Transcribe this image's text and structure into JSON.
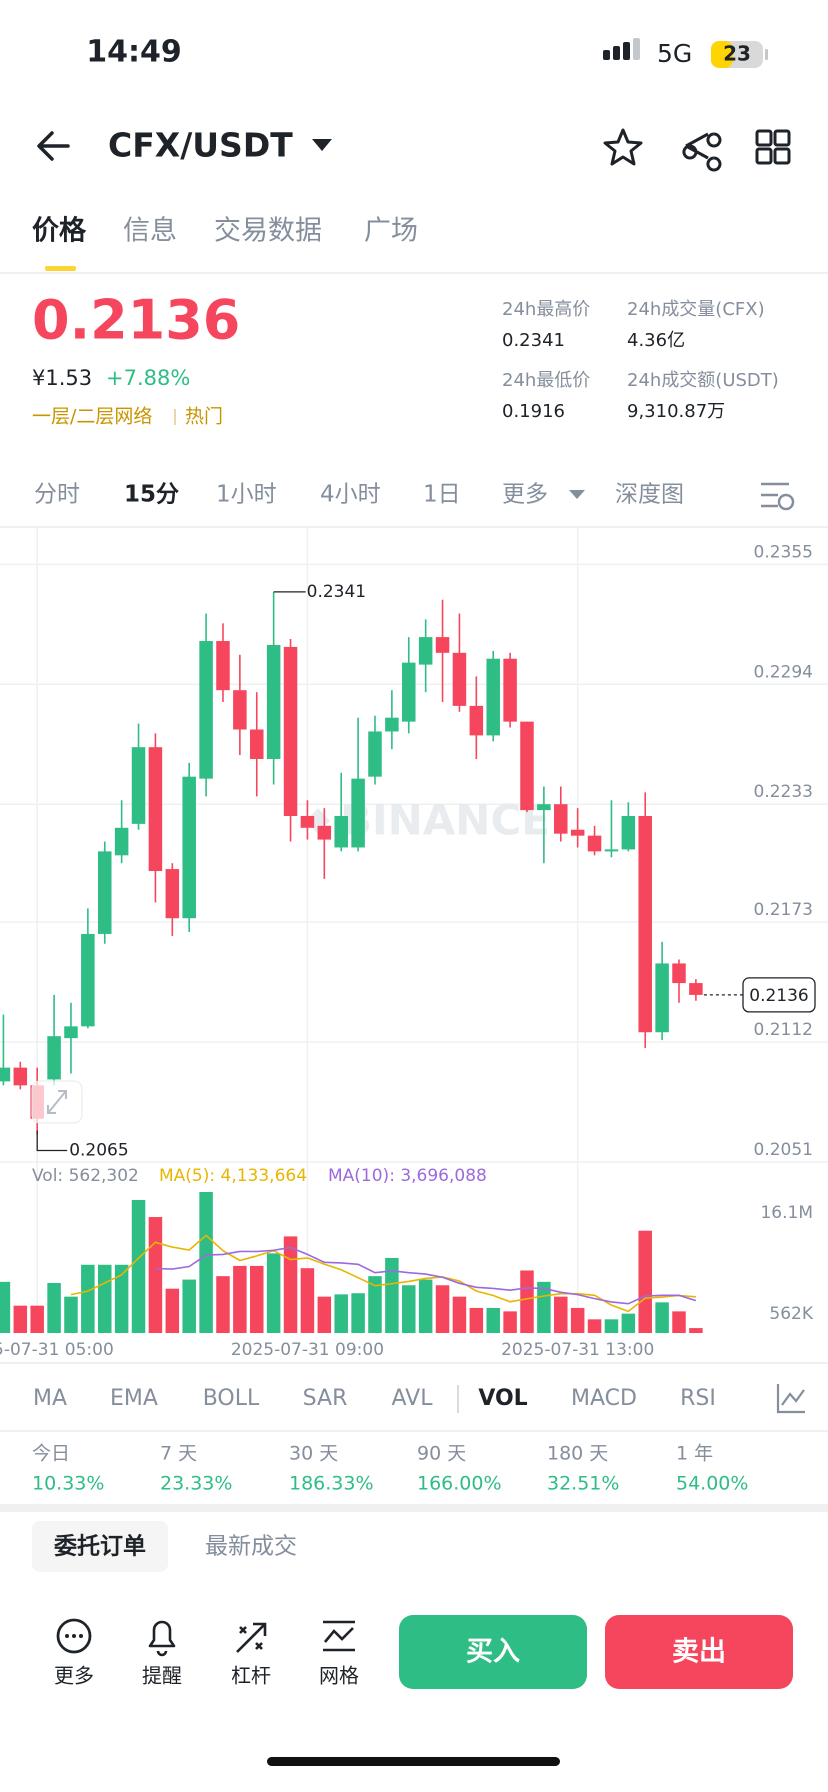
{
  "status_bar": {
    "time": "14:49",
    "network": "5G",
    "battery": "23"
  },
  "header": {
    "pair": "CFX/USDT"
  },
  "tabs": {
    "items": [
      "价格",
      "信息",
      "交易数据",
      "广场"
    ],
    "active": 0
  },
  "ticker": {
    "price": "0.2136",
    "cny": "¥1.53",
    "change": "+7.88%",
    "tags": [
      "一层/二层网络",
      "热门"
    ]
  },
  "stats": [
    {
      "label": "24h最高价",
      "value": "0.2341"
    },
    {
      "label": "24h成交量(CFX)",
      "value": "4.36亿"
    },
    {
      "label": "24h最低价",
      "value": "0.1916"
    },
    {
      "label": "24h成交额(USDT)",
      "value": "9,310.87万"
    }
  ],
  "intervals": {
    "items": [
      "分时",
      "15分",
      "1小时",
      "4小时",
      "1日",
      "更多",
      "深度图"
    ],
    "active": 1
  },
  "chart_data": [
    {
      "type": "candlestick",
      "watermark": "BINANCE",
      "colors": {
        "up": "#2ebd85",
        "down": "#f6465d"
      },
      "grid": true,
      "open": [
        0.2092,
        0.2099,
        0.209,
        0.2093,
        0.2114,
        0.212,
        0.2167,
        0.2207,
        0.2223,
        0.2262,
        0.22,
        0.2175,
        0.2246,
        0.2316,
        0.2291,
        0.2271,
        0.2256,
        0.2313,
        0.2227,
        0.2222,
        0.2211,
        0.2211,
        0.2247,
        0.227,
        0.2275,
        0.2304,
        0.2318,
        0.231,
        0.2283,
        0.2268,
        0.2307,
        0.2275,
        0.223,
        0.2233,
        0.222,
        0.2217,
        0.2209,
        0.221,
        0.2227,
        0.2117,
        0.2152,
        0.2142
      ],
      "high": [
        0.2126,
        0.2102,
        0.2099,
        0.2136,
        0.2132,
        0.218,
        0.2214,
        0.2235,
        0.2274,
        0.2269,
        0.2203,
        0.2254,
        0.233,
        0.2325,
        0.2309,
        0.229,
        0.2341,
        0.2317,
        0.2235,
        0.2231,
        0.2249,
        0.2277,
        0.2278,
        0.2291,
        0.2318,
        0.2327,
        0.2337,
        0.233,
        0.2298,
        0.2311,
        0.231,
        0.2275,
        0.2242,
        0.2242,
        0.2231,
        0.2222,
        0.2235,
        0.2234,
        0.2239,
        0.2163,
        0.2154,
        0.2144
      ],
      "low": [
        0.209,
        0.2088,
        0.2065,
        0.209,
        0.2096,
        0.2119,
        0.2162,
        0.2203,
        0.222,
        0.2183,
        0.2166,
        0.2168,
        0.2237,
        0.2285,
        0.2258,
        0.2237,
        0.2243,
        0.2214,
        0.2215,
        0.2195,
        0.2209,
        0.2209,
        0.2243,
        0.2261,
        0.2269,
        0.229,
        0.2285,
        0.228,
        0.2256,
        0.2265,
        0.2272,
        0.2229,
        0.2203,
        0.2214,
        0.2211,
        0.2207,
        0.2206,
        0.2209,
        0.2109,
        0.2113,
        0.2132,
        0.2133
      ],
      "close": [
        0.2099,
        0.209,
        0.2073,
        0.2115,
        0.212,
        0.2167,
        0.2209,
        0.2221,
        0.2262,
        0.2199,
        0.2175,
        0.2247,
        0.2316,
        0.2291,
        0.2271,
        0.2256,
        0.2314,
        0.2227,
        0.2221,
        0.2215,
        0.2227,
        0.2246,
        0.227,
        0.2277,
        0.2305,
        0.2318,
        0.231,
        0.2283,
        0.2268,
        0.2307,
        0.2275,
        0.223,
        0.2233,
        0.2218,
        0.2217,
        0.2209,
        0.221,
        0.2227,
        0.2117,
        0.2152,
        0.2142,
        0.2136
      ],
      "ylim": [
        0.2051,
        0.2374
      ],
      "yticks": [
        0.2355,
        0.2294,
        0.2233,
        0.2173,
        0.2112,
        0.2051
      ],
      "annotations": [
        {
          "text": "0.2341",
          "value": 0.2341
        },
        {
          "text": "0.2065",
          "value": 0.2065
        }
      ],
      "current_price": {
        "label": "0.2136",
        "value": 0.2136
      }
    },
    {
      "type": "bar",
      "categories": [
        null,
        null,
        "2025-07-31 05:00",
        null,
        null,
        null,
        null,
        null,
        null,
        null,
        null,
        null,
        null,
        null,
        null,
        null,
        null,
        null,
        "2025-07-31 09:00",
        null,
        null,
        null,
        null,
        null,
        null,
        null,
        null,
        null,
        null,
        null,
        null,
        null,
        null,
        null,
        "2025-07-31 13:00",
        null,
        null,
        null,
        null,
        null,
        null,
        null
      ],
      "ylim": [
        0,
        16100000
      ],
      "yticks": [
        {
          "value": 16100000,
          "label": "16.1M"
        },
        {
          "value": 562302,
          "label": "562K"
        }
      ],
      "series": [
        {
          "name": "Vol: 562,302",
          "color": "#848e9c",
          "values": [
            5840000,
            3120000,
            3120000,
            5710000,
            4150000,
            7790000,
            7790000,
            7790000,
            15190000,
            13240000,
            5060000,
            6100000,
            16100000,
            6490000,
            7660000,
            7660000,
            9090000,
            11030000,
            7400000,
            4150000,
            4410000,
            4540000,
            6490000,
            8570000,
            5450000,
            6100000,
            5450000,
            4150000,
            2860000,
            2860000,
            2470000,
            7140000,
            5840000,
            4150000,
            2860000,
            1560000,
            1560000,
            2210000,
            11680000,
            3500000,
            2470000,
            562302
          ]
        },
        {
          "name": "MA(5): 4,133,664",
          "color": "#e8b600",
          "values": [
            null,
            null,
            null,
            null,
            4390000,
            4780000,
            5710000,
            6650000,
            8540000,
            10360000,
            9810000,
            9480000,
            11140000,
            9400000,
            8280000,
            8800000,
            9400000,
            8390000,
            8570000,
            7870000,
            7220000,
            6310000,
            5400000,
            5630000,
            5890000,
            6230000,
            6410000,
            5940000,
            4800000,
            4280000,
            3560000,
            3900000,
            4230000,
            4490000,
            4490000,
            4310000,
            3190000,
            2470000,
            3970000,
            4100000,
            4280000,
            4133664
          ]
        },
        {
          "name": "MA(10): 3,696,088",
          "color": "#9c6ade",
          "values": [
            null,
            null,
            null,
            null,
            null,
            null,
            null,
            null,
            null,
            7370000,
            7300000,
            7590000,
            8890000,
            8970000,
            9320000,
            9310000,
            9440000,
            9760000,
            8980000,
            8070000,
            8010000,
            7850000,
            6890000,
            7100000,
            6880000,
            6720000,
            6360000,
            5670000,
            5220000,
            5090000,
            4890000,
            5150000,
            5090000,
            4650000,
            4390000,
            3930000,
            3550000,
            3350000,
            4230000,
            4300000,
            4300000,
            3696088
          ]
        }
      ]
    }
  ],
  "indicators": {
    "items": [
      "MA",
      "EMA",
      "BOLL",
      "SAR",
      "AVL",
      "VOL",
      "MACD",
      "RSI"
    ],
    "active": 5
  },
  "performance": [
    {
      "label": "今日",
      "value": "10.33%"
    },
    {
      "label": "7 天",
      "value": "23.33%"
    },
    {
      "label": "30 天",
      "value": "186.33%"
    },
    {
      "label": "90 天",
      "value": "166.00%"
    },
    {
      "label": "180 天",
      "value": "32.51%"
    },
    {
      "label": "1 年",
      "value": "54.00%"
    }
  ],
  "order_tabs": [
    "委托订单",
    "最新成交"
  ],
  "actions": [
    "更多",
    "提醒",
    "杠杆",
    "网格"
  ],
  "buttons": {
    "buy": "买入",
    "sell": "卖出"
  }
}
